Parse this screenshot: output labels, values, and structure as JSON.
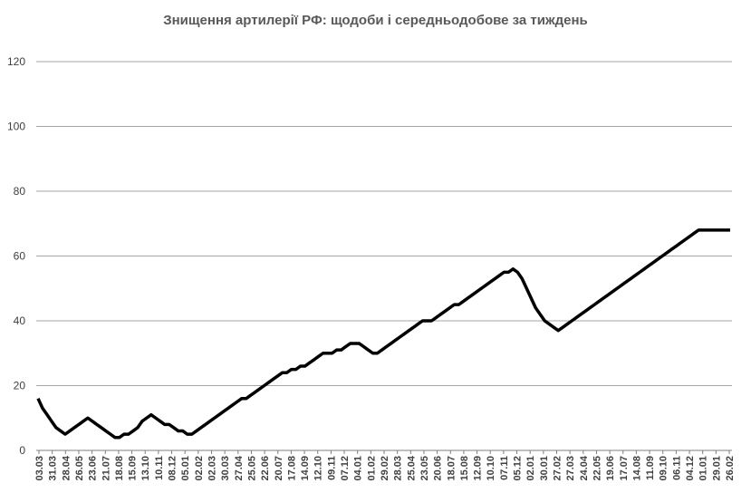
{
  "chart_data": {
    "type": "line",
    "title": "Знищення артилерії РФ: щодоби і середньодобове за тиждень",
    "xlabel": "",
    "ylabel": "",
    "ylim": [
      0,
      120
    ],
    "yticks": [
      0,
      20,
      40,
      60,
      80,
      100,
      120
    ],
    "grid": true,
    "legend": "none",
    "colors": {
      "daily": "#8c8c8c",
      "weekly_avg": "#000000",
      "grid": "#a6a6a6",
      "title": "#595959"
    },
    "x_tick_labels": [
      "03.03",
      "31.03",
      "28.04",
      "26.05",
      "23.06",
      "21.07",
      "18.08",
      "15.09",
      "13.10",
      "10.11",
      "08.12",
      "05.01",
      "02.02",
      "02.03",
      "30.03",
      "27.04",
      "25.05",
      "22.06",
      "20.07",
      "17.08",
      "14.09",
      "12.10",
      "09.11",
      "07.12",
      "04.01",
      "01.02",
      "29.02",
      "28.03",
      "25.04",
      "23.05",
      "20.06",
      "18.07",
      "15.08",
      "12.09",
      "10.10",
      "07.11",
      "05.12",
      "02.01",
      "30.01",
      "27.02",
      "27.03",
      "24.04",
      "22.05",
      "19.06",
      "17.07",
      "14.08",
      "11.09",
      "09.10",
      "06.11",
      "04.12",
      "01.01",
      "29.01",
      "26.02"
    ],
    "series": [
      {
        "values": [
          16,
          13,
          11,
          9,
          7,
          6,
          5,
          6,
          7,
          8,
          9,
          10,
          9,
          8,
          7,
          6,
          5,
          4,
          4,
          5,
          5,
          6,
          7,
          9,
          10,
          11,
          10,
          9,
          8,
          8,
          7,
          6,
          6,
          5,
          5,
          6,
          7,
          8,
          9,
          10,
          11,
          12,
          13,
          14,
          15,
          16,
          16,
          17,
          18,
          19,
          20,
          21,
          22,
          23,
          24,
          24,
          25,
          25,
          26,
          26,
          27,
          28,
          29,
          30,
          30,
          30,
          31,
          31,
          32,
          33,
          33,
          33,
          32,
          31,
          30,
          30,
          31,
          32,
          33,
          34,
          35,
          36,
          37,
          38,
          39,
          40,
          40,
          40,
          41,
          42,
          43,
          44,
          45,
          45,
          46,
          47,
          48,
          49,
          50,
          51,
          52,
          53,
          54,
          55,
          55,
          56,
          55,
          53,
          50,
          47,
          44,
          42,
          40,
          39,
          38,
          37,
          38,
          39,
          40,
          41,
          42,
          43,
          44,
          45,
          46,
          47,
          48,
          49,
          50,
          51,
          52,
          53,
          54,
          55,
          56,
          57,
          58,
          59,
          60,
          61,
          62,
          63,
          64,
          65,
          66,
          67,
          68,
          68,
          68,
          68,
          68,
          68,
          68,
          68
        ]
      }
    ]
  }
}
